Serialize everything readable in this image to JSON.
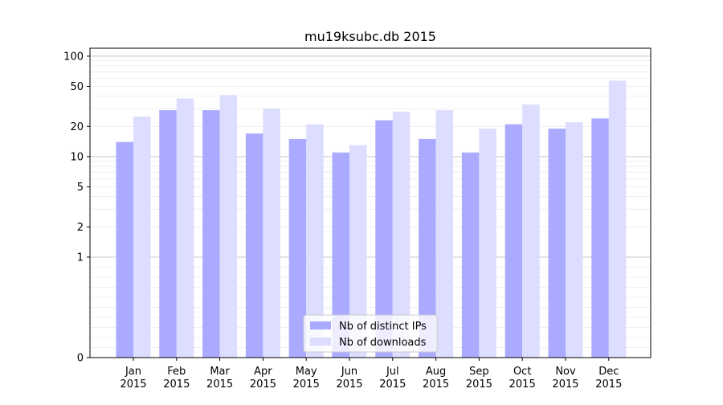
{
  "chart_data": {
    "type": "bar",
    "title": "mu19ksubc.db 2015",
    "xlabel": "",
    "ylabel": "",
    "yscale": "symlog",
    "ylim": [
      0,
      120
    ],
    "yticks": [
      0,
      1,
      2,
      5,
      10,
      20,
      50,
      100
    ],
    "ytick_labels": [
      "0",
      "1",
      "2",
      "5",
      "10",
      "20",
      "50",
      "100"
    ],
    "grid": true,
    "legend_position": "bottom-center",
    "categories": [
      "Jan\n2015",
      "Feb\n2015",
      "Mar\n2015",
      "Apr\n2015",
      "May\n2015",
      "Jun\n2015",
      "Jul\n2015",
      "Aug\n2015",
      "Sep\n2015",
      "Oct\n2015",
      "Nov\n2015",
      "Dec\n2015"
    ],
    "series": [
      {
        "name": "Nb of distinct IPs",
        "color": "#aaaaff",
        "values": [
          14,
          29,
          29,
          17,
          15,
          11,
          23,
          15,
          11,
          21,
          19,
          24
        ]
      },
      {
        "name": "Nb of downloads",
        "color": "#ddddff",
        "values": [
          25,
          38,
          41,
          30,
          21,
          13,
          28,
          29,
          19,
          33,
          22,
          57
        ]
      }
    ]
  }
}
